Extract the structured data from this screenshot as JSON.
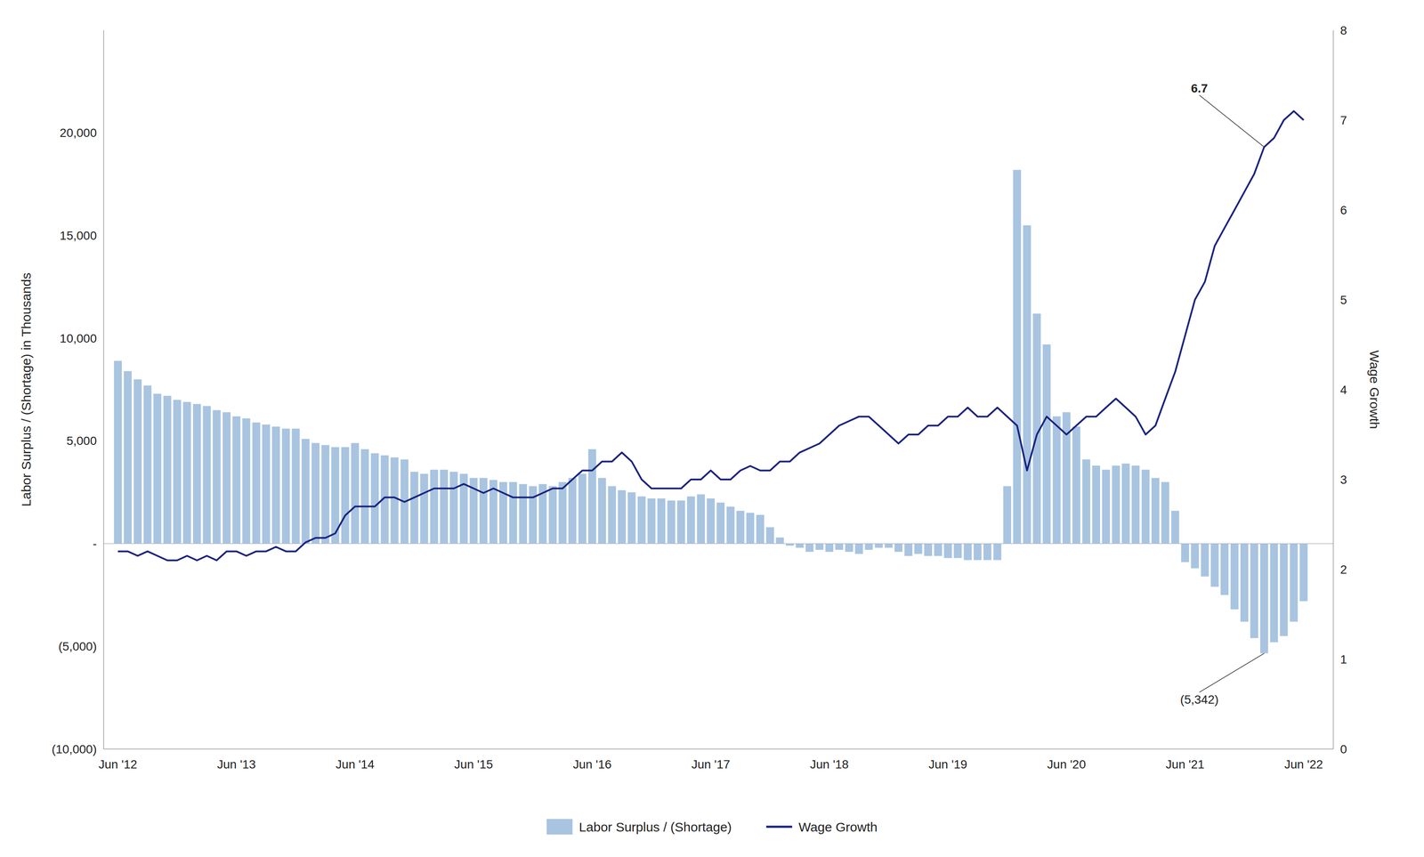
{
  "chart_data": {
    "type": "bar",
    "y_label": "Labor Surplus / (Shortage) in Thousands",
    "y2_label": "Wage Growth",
    "grid": false,
    "legend": "bottom",
    "x": [
      2012.5,
      2012.583,
      2012.667,
      2012.75,
      2012.833,
      2012.917,
      2013.0,
      2013.083,
      2013.167,
      2013.25,
      2013.333,
      2013.417,
      2013.5,
      2013.583,
      2013.667,
      2013.75,
      2013.833,
      2013.917,
      2014.0,
      2014.083,
      2014.167,
      2014.25,
      2014.333,
      2014.417,
      2014.5,
      2014.583,
      2014.667,
      2014.75,
      2014.833,
      2014.917,
      2015.0,
      2015.083,
      2015.167,
      2015.25,
      2015.333,
      2015.417,
      2015.5,
      2015.583,
      2015.667,
      2015.75,
      2015.833,
      2015.917,
      2016.0,
      2016.083,
      2016.167,
      2016.25,
      2016.333,
      2016.417,
      2016.5,
      2016.583,
      2016.667,
      2016.75,
      2016.833,
      2016.917,
      2017.0,
      2017.083,
      2017.167,
      2017.25,
      2017.333,
      2017.417,
      2017.5,
      2017.583,
      2017.667,
      2017.75,
      2017.833,
      2017.917,
      2018.0,
      2018.083,
      2018.167,
      2018.25,
      2018.333,
      2018.417,
      2018.5,
      2018.583,
      2018.667,
      2018.75,
      2018.833,
      2018.917,
      2019.0,
      2019.083,
      2019.167,
      2019.25,
      2019.333,
      2019.417,
      2019.5,
      2019.583,
      2019.667,
      2019.75,
      2019.833,
      2019.917,
      2020.0,
      2020.083,
      2020.167,
      2020.25,
      2020.333,
      2020.417,
      2020.5,
      2020.583,
      2020.667,
      2020.75,
      2020.833,
      2020.917,
      2021.0,
      2021.083,
      2021.167,
      2021.25,
      2021.333,
      2021.417,
      2021.5,
      2021.583,
      2021.667,
      2021.75,
      2021.833,
      2021.917,
      2022.0,
      2022.083,
      2022.167,
      2022.25,
      2022.333,
      2022.417,
      2022.5
    ],
    "xlim": [
      2012.38,
      2022.75
    ],
    "xticks": [
      {
        "value": 2012.5,
        "label": "Jun '12"
      },
      {
        "value": 2013.5,
        "label": "Jun '13"
      },
      {
        "value": 2014.5,
        "label": "Jun '14"
      },
      {
        "value": 2015.5,
        "label": "Jun '15"
      },
      {
        "value": 2016.5,
        "label": "Jun '16"
      },
      {
        "value": 2017.5,
        "label": "Jun '17"
      },
      {
        "value": 2018.5,
        "label": "Jun '18"
      },
      {
        "value": 2019.5,
        "label": "Jun '19"
      },
      {
        "value": 2020.5,
        "label": "Jun '20"
      },
      {
        "value": 2021.5,
        "label": "Jun '21"
      },
      {
        "value": 2022.5,
        "label": "Jun '22"
      }
    ],
    "ylim": [
      -10000,
      25000
    ],
    "yticks": [
      {
        "value": -10000,
        "label": "(10,000)"
      },
      {
        "value": -5000,
        "label": "(5,000)"
      },
      {
        "value": 0,
        "label": "-"
      },
      {
        "value": 5000,
        "label": "5,000"
      },
      {
        "value": 10000,
        "label": "10,000"
      },
      {
        "value": 15000,
        "label": "15,000"
      },
      {
        "value": 20000,
        "label": "20,000"
      }
    ],
    "y2lim": [
      0,
      8
    ],
    "y2ticks": [
      0,
      1,
      2,
      3,
      4,
      5,
      6,
      7,
      8
    ],
    "series": [
      {
        "name": "Labor Surplus / (Shortage)",
        "type": "bar",
        "color": "#a8c4e0",
        "values": [
          8900,
          8400,
          8000,
          7700,
          7300,
          7200,
          7000,
          6900,
          6800,
          6700,
          6500,
          6400,
          6200,
          6100,
          5900,
          5800,
          5700,
          5600,
          5600,
          5100,
          4900,
          4800,
          4700,
          4700,
          4900,
          4600,
          4400,
          4300,
          4200,
          4100,
          3500,
          3400,
          3600,
          3600,
          3500,
          3400,
          3200,
          3200,
          3100,
          3000,
          3000,
          2900,
          2800,
          2900,
          2800,
          3000,
          3200,
          3400,
          4600,
          3200,
          2800,
          2600,
          2500,
          2300,
          2200,
          2200,
          2100,
          2100,
          2300,
          2400,
          2200,
          2000,
          1800,
          1600,
          1500,
          1400,
          800,
          300,
          -100,
          -200,
          -400,
          -300,
          -400,
          -300,
          -400,
          -500,
          -300,
          -200,
          -200,
          -400,
          -600,
          -500,
          -600,
          -600,
          -700,
          -700,
          -800,
          -800,
          -800,
          -800,
          2800,
          18200,
          15500,
          11200,
          9700,
          6200,
          6400,
          5700,
          4100,
          3800,
          3600,
          3800,
          3900,
          3800,
          3600,
          3200,
          3000,
          1600,
          -900,
          -1200,
          -1600,
          -2100,
          -2500,
          -3200,
          -3800,
          -4600,
          -5342,
          -4800,
          -4500,
          -3800,
          -2800
        ]
      },
      {
        "name": "Wage Growth",
        "type": "line",
        "axis": "y2",
        "color": "#1a237e",
        "values": [
          2.2,
          2.2,
          2.15,
          2.2,
          2.15,
          2.1,
          2.1,
          2.15,
          2.1,
          2.15,
          2.1,
          2.2,
          2.2,
          2.15,
          2.2,
          2.2,
          2.25,
          2.2,
          2.2,
          2.3,
          2.35,
          2.35,
          2.4,
          2.6,
          2.7,
          2.7,
          2.7,
          2.8,
          2.8,
          2.75,
          2.8,
          2.85,
          2.9,
          2.9,
          2.9,
          2.95,
          2.9,
          2.85,
          2.9,
          2.85,
          2.8,
          2.8,
          2.8,
          2.85,
          2.9,
          2.9,
          3.0,
          3.1,
          3.1,
          3.2,
          3.2,
          3.3,
          3.2,
          3.0,
          2.9,
          2.9,
          2.9,
          2.9,
          3.0,
          3.0,
          3.1,
          3.0,
          3.0,
          3.1,
          3.15,
          3.1,
          3.1,
          3.2,
          3.2,
          3.3,
          3.35,
          3.4,
          3.5,
          3.6,
          3.65,
          3.7,
          3.7,
          3.6,
          3.5,
          3.4,
          3.5,
          3.5,
          3.6,
          3.6,
          3.7,
          3.7,
          3.8,
          3.7,
          3.7,
          3.8,
          3.7,
          3.6,
          3.1,
          3.5,
          3.7,
          3.6,
          3.5,
          3.6,
          3.7,
          3.7,
          3.8,
          3.9,
          3.8,
          3.7,
          3.5,
          3.6,
          3.9,
          4.2,
          4.6,
          5.0,
          5.2,
          5.6,
          5.8,
          6.0,
          6.2,
          6.4,
          6.7,
          6.8,
          7.0,
          7.1,
          7.0
        ]
      }
    ],
    "annotations": [
      {
        "text": "(5,342)",
        "x": 2022.167,
        "y": -5342
      },
      {
        "text": "6.7",
        "x": 2022.167,
        "y": 6.7,
        "axis": "y2"
      }
    ]
  }
}
